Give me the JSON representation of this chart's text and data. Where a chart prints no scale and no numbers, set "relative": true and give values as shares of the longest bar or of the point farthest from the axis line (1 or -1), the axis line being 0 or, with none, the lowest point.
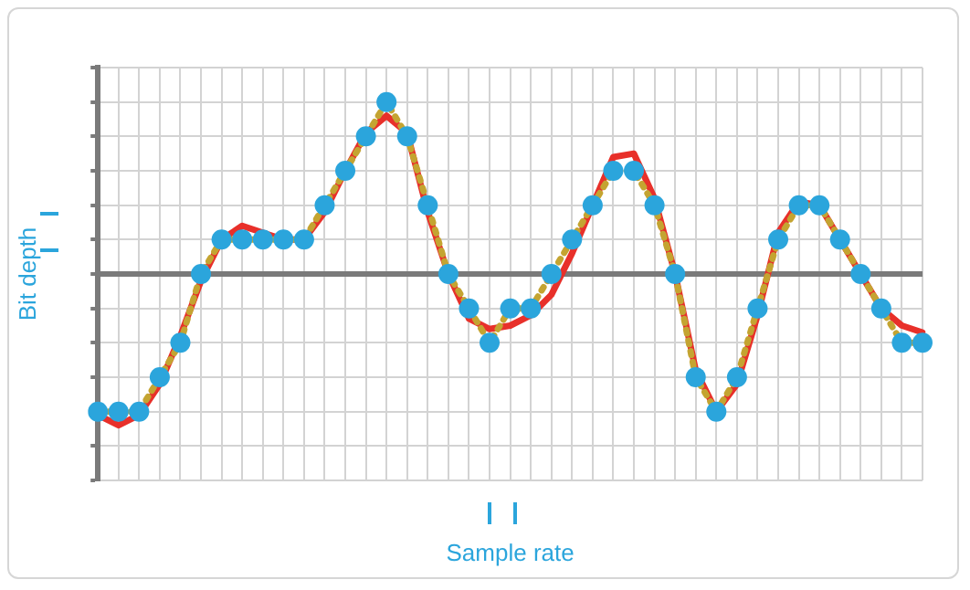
{
  "chart_data": {
    "type": "line",
    "xlabel": "Sample rate",
    "ylabel": "Bit depth",
    "relative": true,
    "grid": true,
    "legend": false,
    "categories": [
      null,
      null,
      null,
      null,
      null,
      null,
      null,
      null,
      null,
      null,
      null,
      null,
      null,
      null,
      null,
      null,
      null,
      null,
      null,
      null,
      null,
      null,
      null,
      null,
      null,
      null,
      null,
      null,
      null,
      null,
      null,
      null,
      null,
      null,
      null,
      null,
      null,
      null,
      null,
      null,
      null
    ],
    "series": [
      {
        "type": "line",
        "color": "#e8302a",
        "line_style": "solid",
        "marker": "none",
        "values": [
          -0.82,
          -0.88,
          -0.82,
          -0.64,
          -0.36,
          -0.04,
          0.2,
          0.28,
          0.24,
          0.2,
          0.2,
          0.36,
          0.6,
          0.82,
          0.92,
          0.82,
          0.36,
          0,
          -0.26,
          -0.32,
          -0.3,
          -0.24,
          -0.12,
          0.12,
          0.4,
          0.68,
          0.7,
          0.44,
          0,
          -0.56,
          -0.8,
          -0.64,
          -0.24,
          0.24,
          0.42,
          0.4,
          0.2,
          0,
          -0.2,
          -0.3,
          -0.34
        ]
      },
      {
        "type": "line",
        "color": "#c4a431",
        "line_style": "dotted",
        "marker": "circle",
        "colors": [
          "#2ba5dc",
          "#2ba5dc",
          "#2ba5dc",
          "#2ba5dc",
          "#2ba5dc",
          "#2ba5dc",
          "#2ba5dc",
          "#2ba5dc",
          "#2ba5dc",
          "#2ba5dc",
          "#2ba5dc",
          "#2ba5dc",
          "#2ba5dc",
          "#2ba5dc",
          "#2ba5dc",
          "#2ba5dc",
          "#2ba5dc",
          "#2ba5dc",
          "#2ba5dc",
          "#2ba5dc",
          "#2ba5dc",
          "#2ba5dc",
          "#2ba5dc",
          "#2ba5dc",
          "#2ba5dc",
          "#2ba5dc",
          "#2ba5dc",
          "#2ba5dc",
          "#2ba5dc",
          "#2ba5dc",
          "#2ba5dc",
          "#2ba5dc",
          "#2ba5dc",
          "#2ba5dc",
          "#2ba5dc",
          "#2ba5dc",
          "#2ba5dc",
          "#2ba5dc",
          "#2ba5dc",
          "#2ba5dc",
          "#2ba5dc"
        ],
        "values": [
          -0.8,
          -0.8,
          -0.8,
          -0.6,
          -0.4,
          0,
          0.2,
          0.2,
          0.2,
          0.2,
          0.2,
          0.4,
          0.6,
          0.8,
          1,
          0.8,
          0.4,
          0,
          -0.2,
          -0.4,
          -0.2,
          -0.2,
          0,
          0.2,
          0.4,
          0.6,
          0.6,
          0.4,
          0,
          -0.6,
          -0.8,
          -0.6,
          -0.2,
          0.2,
          0.4,
          0.4,
          0.2,
          0,
          -0.2,
          -0.4,
          -0.4
        ]
      }
    ]
  }
}
